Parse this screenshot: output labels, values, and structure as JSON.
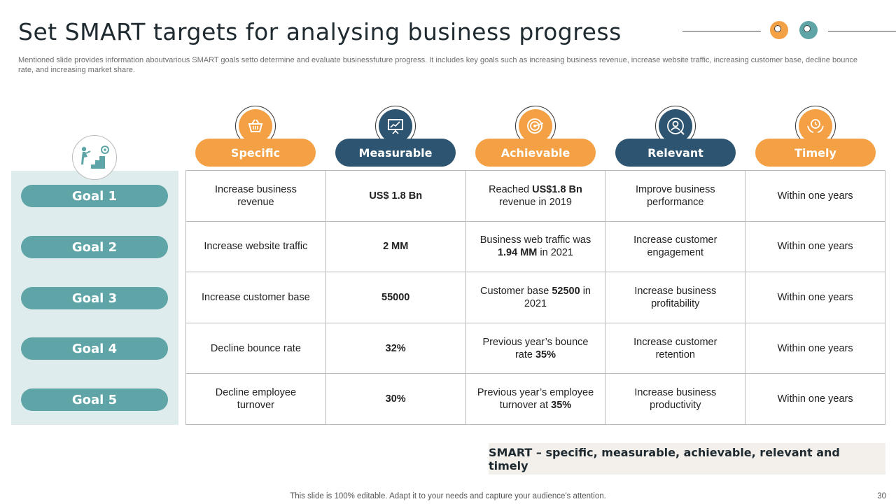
{
  "title": "Set SMART targets for analysing business progress",
  "subtitle": "Mentioned slide provides information aboutvarious SMART goals setto determine and evaluate businessfuture progress. It includes key goals such as increasing business revenue, increase website traffic, increasing customer base, decline bounce rate, and increasing market share.",
  "colors": {
    "orange": "#f4a045",
    "navy": "#2d5470",
    "teal": "#5fa5a8",
    "panel": "#dfeced"
  },
  "columns": [
    {
      "label": "Specific",
      "color": "orange",
      "icon": "basket-icon"
    },
    {
      "label": "Measurable",
      "color": "navy",
      "icon": "presentation-chart-icon"
    },
    {
      "label": "Achievable",
      "color": "orange",
      "icon": "target-icon"
    },
    {
      "label": "Relevant",
      "color": "navy",
      "icon": "user-focus-icon"
    },
    {
      "label": "Timely",
      "color": "orange",
      "icon": "time-hands-icon"
    }
  ],
  "goals": [
    {
      "label": "Goal 1",
      "specific": "Increase business revenue",
      "measurable": "US$ 1.8 Bn",
      "achievable": {
        "pre": "Reached ",
        "bold": "US$1.8 Bn",
        "post": " revenue in 2019"
      },
      "relevant": "Improve business performance",
      "timely": "Within one years"
    },
    {
      "label": "Goal 2",
      "specific": "Increase website traffic",
      "measurable": "2 MM",
      "achievable": {
        "pre": "Business web traffic was ",
        "bold": "1.94 MM",
        "post": " in 2021"
      },
      "relevant": "Increase customer engagement",
      "timely": "Within one years"
    },
    {
      "label": "Goal 3",
      "specific": "Increase customer base",
      "measurable": "55000",
      "achievable": {
        "pre": "Customer base ",
        "bold": "52500",
        "post": " in 2021"
      },
      "relevant": "Increase business profitability",
      "timely": "Within one years"
    },
    {
      "label": "Goal 4",
      "specific": "Decline bounce rate",
      "measurable": "32%",
      "achievable": {
        "pre": "Previous year’s bounce rate ",
        "bold": "35%",
        "post": ""
      },
      "relevant": "Increase customer retention",
      "timely": "Within one years"
    },
    {
      "label": "Goal 5",
      "specific": "Decline employee turnover",
      "measurable": "30%",
      "achievable": {
        "pre": "Previous year’s employee turnover at ",
        "bold": "35%",
        "post": ""
      },
      "relevant": "Increase business productivity",
      "timely": "Within one years"
    }
  ],
  "footer_box": "SMART – specific, measurable, achievable, relevant and timely",
  "footnote": "This slide is 100% editable. Adapt it to your needs and capture your audience's attention.",
  "page_number": "30"
}
